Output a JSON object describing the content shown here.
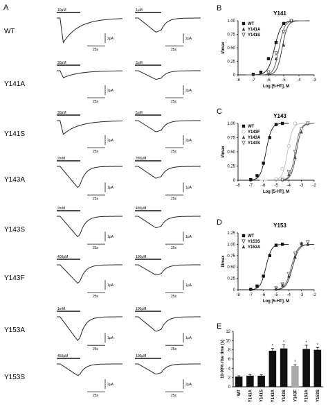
{
  "panel_letters": {
    "a": "A",
    "b": "B",
    "c": "C",
    "d": "D",
    "e": "E"
  },
  "trace_rows": [
    {
      "label": "WT",
      "left_conc": "10μM",
      "right_conc": "1μM",
      "left_amp": "2μA",
      "left_time": "25s",
      "right_amp": "2μA",
      "right_time": "25s"
    },
    {
      "label": "Y141A",
      "left_conc": "30μM",
      "right_conc": "3μM",
      "left_amp": "2μA",
      "left_time": "25s",
      "right_amp": "2μA",
      "right_time": "25s"
    },
    {
      "label": "Y141S",
      "left_conc": "30μM",
      "right_conc": "5μM",
      "left_amp": "2μA",
      "left_time": "25s",
      "right_amp": "2μA",
      "right_time": "25s"
    },
    {
      "label": "Y143A",
      "left_conc": "2mM",
      "right_conc": "350μM",
      "left_amp": "1μA",
      "left_time": "25s",
      "right_amp": "1μA",
      "right_time": "25s"
    },
    {
      "label": "Y143S",
      "left_conc": "2mM",
      "right_conc": "450μM",
      "left_amp": "1μA",
      "left_time": "25s",
      "right_amp": "1μA",
      "right_time": "25s"
    },
    {
      "label": "Y143F",
      "left_conc": "400μM",
      "right_conc": "100μM",
      "left_amp": "1μA",
      "left_time": "25s",
      "right_amp": "1μA",
      "right_time": "25s"
    },
    {
      "label": "Y153A",
      "left_conc": "1mM",
      "right_conc": "100μM",
      "left_amp": "1μA",
      "left_time": "25s",
      "right_amp": "1μA",
      "right_time": "25s"
    },
    {
      "label": "Y153S",
      "left_conc": "450μM",
      "right_conc": "100μM",
      "left_amp": "2μA",
      "left_time": "25s",
      "right_amp": "2μA",
      "right_time": "25s"
    }
  ],
  "chart_data": [
    {
      "type": "line",
      "panel": "B",
      "title": "Y141",
      "xlabel": "Log [5-HT], M",
      "ylabel": "I/Imax",
      "xlim": [
        -8,
        -3
      ],
      "ylim": [
        0,
        1.0
      ],
      "xticks": [
        -8,
        -7,
        -6,
        -5,
        -4,
        -3
      ],
      "yticks": [
        0,
        0.25,
        0.5,
        0.75,
        1.0
      ],
      "ytick_labels": [
        "0",
        "0.25",
        "0.50",
        "0.75",
        "1.00"
      ],
      "legend_position": "top-left",
      "series": [
        {
          "name": "WT",
          "ec50": -5.6,
          "hill": 2.0,
          "x": [
            -7,
            -6.5,
            -6,
            -5.5,
            -5,
            -4.5
          ],
          "y": [
            0.01,
            0.05,
            0.3,
            0.6,
            0.95,
            1.0
          ],
          "color": "#111111",
          "marker": "square"
        },
        {
          "name": "Y141A",
          "ec50": -5.1,
          "hill": 2.5,
          "x": [
            -6,
            -5.5,
            -5,
            -4.5
          ],
          "y": [
            0.05,
            0.3,
            0.55,
            1.0
          ],
          "color": "#333333",
          "marker": "triangle"
        },
        {
          "name": "Y141S",
          "ec50": -5.3,
          "hill": 2.5,
          "x": [
            -6,
            -5.5,
            -5,
            -4.5
          ],
          "y": [
            0.05,
            0.4,
            0.8,
            1.0
          ],
          "color": "#555555",
          "marker": "triangle-down"
        }
      ]
    },
    {
      "type": "line",
      "panel": "C",
      "title": "Y143",
      "xlabel": "Log [5-HT], M",
      "ylabel": "I/Imax",
      "xlim": [
        -8,
        -2
      ],
      "ylim": [
        0,
        1.0
      ],
      "xticks": [
        -8,
        -7,
        -6,
        -5,
        -4,
        -3,
        -2
      ],
      "yticks": [
        0,
        0.25,
        0.5,
        0.75,
        1.0
      ],
      "ytick_labels": [
        "0",
        "0.25",
        "0.50",
        "0.75",
        "1.00"
      ],
      "legend_position": "top-left",
      "series": [
        {
          "name": "WT",
          "ec50": -5.8,
          "hill": 2.0,
          "x": [
            -7,
            -6.5,
            -6,
            -5.5,
            -5,
            -4.5
          ],
          "y": [
            0.01,
            0.08,
            0.3,
            0.75,
            0.98,
            1.0
          ],
          "color": "#111111",
          "marker": "square"
        },
        {
          "name": "Y143F",
          "ec50": -4.1,
          "hill": 2.2,
          "x": [
            -5,
            -4.5,
            -4,
            -3.5
          ],
          "y": [
            0.02,
            0.2,
            0.6,
            1.0
          ],
          "color": "#bbbbbb",
          "marker": "circle"
        },
        {
          "name": "Y143A",
          "ec50": -3.4,
          "hill": 2.2,
          "x": [
            -4.5,
            -4,
            -3.5,
            -3,
            -2.5
          ],
          "y": [
            0.01,
            0.1,
            0.4,
            0.85,
            1.0
          ],
          "color": "#444444",
          "marker": "triangle"
        },
        {
          "name": "Y143S",
          "ec50": -3.5,
          "hill": 2.2,
          "x": [
            -4.5,
            -4,
            -3.5,
            -3,
            -2.5
          ],
          "y": [
            0.01,
            0.15,
            0.5,
            0.9,
            1.0
          ],
          "color": "#666666",
          "marker": "triangle-down"
        }
      ]
    },
    {
      "type": "line",
      "panel": "D",
      "title": "Y153",
      "xlabel": "Log [5-HT], M",
      "ylabel": "I/Imax",
      "xlim": [
        -8,
        -2
      ],
      "ylim": [
        0,
        1.25
      ],
      "xticks": [
        -8,
        -7,
        -6,
        -5,
        -4,
        -3,
        -2
      ],
      "yticks": [
        0,
        0.25,
        0.5,
        0.75,
        1.0,
        1.25
      ],
      "ytick_labels": [
        "0",
        "0.25",
        "0.50",
        "0.75",
        "1.00",
        "1.25"
      ],
      "legend_position": "top-left",
      "series": [
        {
          "name": "WT",
          "ec50": -5.8,
          "hill": 2.0,
          "x": [
            -7,
            -6.5,
            -6,
            -5.5,
            -5,
            -4.5
          ],
          "y": [
            0.01,
            0.08,
            0.3,
            0.75,
            0.98,
            1.0
          ],
          "color": "#111111",
          "marker": "square"
        },
        {
          "name": "Y153S",
          "ec50": -3.8,
          "hill": 1.8,
          "x": [
            -5,
            -4.5,
            -4,
            -3.5,
            -3,
            -2.5
          ],
          "y": [
            0.03,
            0.12,
            0.35,
            0.8,
            1.0,
            1.05
          ],
          "color": "#555555",
          "marker": "triangle-down"
        },
        {
          "name": "Y153A",
          "ec50": -3.7,
          "hill": 1.8,
          "x": [
            -5,
            -4.5,
            -4,
            -3.5,
            -3,
            -2.5
          ],
          "y": [
            0.02,
            0.1,
            0.3,
            0.72,
            1.02,
            1.0
          ],
          "color": "#333333",
          "marker": "triangle"
        }
      ]
    },
    {
      "type": "bar",
      "panel": "E",
      "ylabel": "10-90% rise time (s)",
      "ylim": [
        0,
        12
      ],
      "yticks": [
        0,
        2,
        4,
        6,
        8,
        10,
        12
      ],
      "categories": [
        "WT",
        "Y141A",
        "Y141S",
        "Y143A",
        "Y143S",
        "Y143F",
        "Y153A",
        "Y153S"
      ],
      "values": [
        2.2,
        2.4,
        2.4,
        7.8,
        8.3,
        4.5,
        8.2,
        8.0
      ],
      "errors": [
        0.2,
        0.2,
        0.2,
        0.5,
        0.8,
        0.3,
        0.8,
        0.5
      ],
      "colors": [
        "#111111",
        "#111111",
        "#111111",
        "#111111",
        "#111111",
        "#aaaaaa",
        "#111111",
        "#111111"
      ],
      "significant": [
        false,
        false,
        false,
        true,
        true,
        true,
        true,
        true
      ],
      "sig_marker": "*"
    }
  ]
}
